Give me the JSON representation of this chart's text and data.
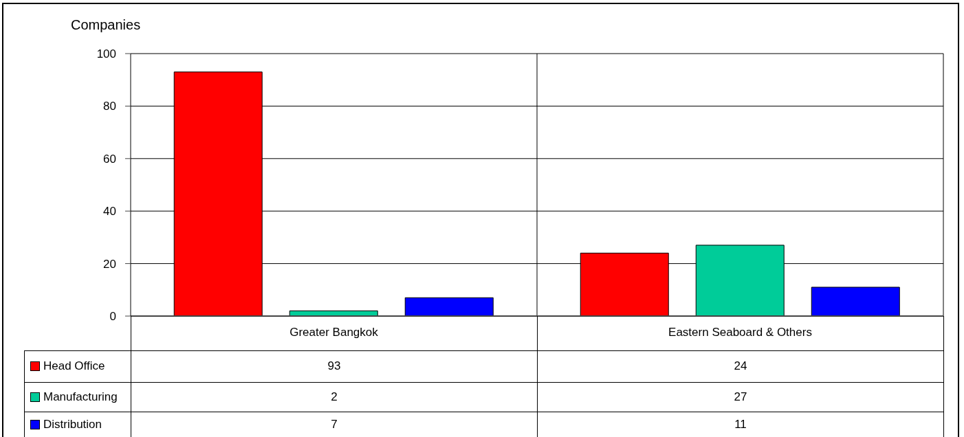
{
  "chart_data": {
    "type": "bar",
    "ylabel": "Companies",
    "categories": [
      "Greater Bangkok",
      "Eastern Seaboard & Others"
    ],
    "series": [
      {
        "name": "Head Office",
        "color": "#ff0000",
        "values": [
          93,
          24
        ]
      },
      {
        "name": "Manufacturing",
        "color": "#00cc99",
        "values": [
          2,
          27
        ]
      },
      {
        "name": "Distribution",
        "color": "#0000ff",
        "values": [
          7,
          11
        ]
      }
    ],
    "ylim": [
      0,
      100
    ],
    "yticks": [
      0,
      20,
      40,
      60,
      80,
      100
    ],
    "grid": true,
    "legend": "bottom",
    "data_labels": true
  }
}
